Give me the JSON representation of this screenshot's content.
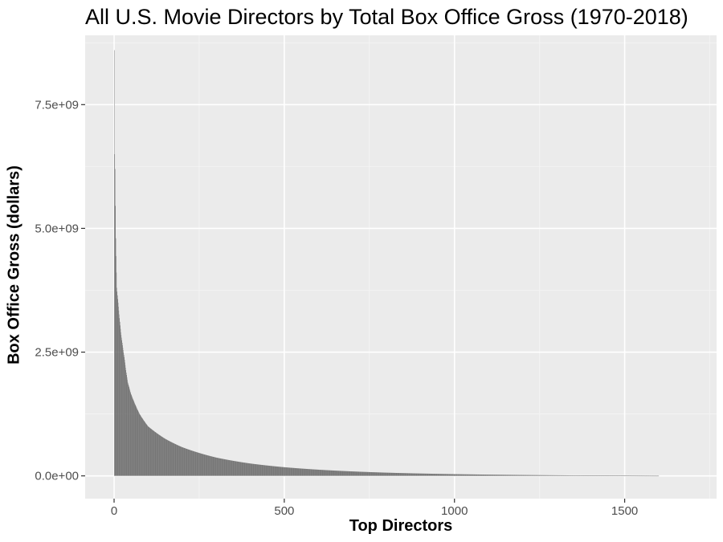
{
  "chart_data": {
    "type": "bar",
    "title": "All U.S. Movie Directors by Total Box Office Gross (1970-2018)",
    "xlabel": "Top Directors",
    "ylabel": "Box Office Gross (dollars)",
    "xlim": [
      -85,
      1770
    ],
    "ylim": [
      -460000000,
      8900000000
    ],
    "xticks": [
      0,
      500,
      1000,
      1500
    ],
    "xtick_labels": [
      "0",
      "500",
      "1000",
      "1500"
    ],
    "yticks": [
      0,
      2500000000,
      5000000000,
      7500000000
    ],
    "ytick_labels": [
      "0.0e+00",
      "2.5e+09",
      "5.0e+09",
      "7.5e+09"
    ],
    "n_bars": 1600,
    "bar_color": "#595959",
    "panel_background": "#ebebeb",
    "grid": true,
    "sample_points": [
      {
        "rank": 1,
        "gross": 8600000000
      },
      {
        "rank": 2,
        "gross": 6500000000
      },
      {
        "rank": 3,
        "gross": 6200000000
      },
      {
        "rank": 5,
        "gross": 4800000000
      },
      {
        "rank": 8,
        "gross": 3800000000
      },
      {
        "rank": 12,
        "gross": 3500000000
      },
      {
        "rank": 20,
        "gross": 2900000000
      },
      {
        "rank": 30,
        "gross": 2400000000
      },
      {
        "rank": 40,
        "gross": 1900000000
      },
      {
        "rank": 50,
        "gross": 1650000000
      },
      {
        "rank": 75,
        "gross": 1250000000
      },
      {
        "rank": 100,
        "gross": 1000000000
      },
      {
        "rank": 150,
        "gross": 750000000
      },
      {
        "rank": 200,
        "gross": 580000000
      },
      {
        "rank": 300,
        "gross": 370000000
      },
      {
        "rank": 400,
        "gross": 250000000
      },
      {
        "rank": 500,
        "gross": 175000000
      },
      {
        "rank": 600,
        "gross": 125000000
      },
      {
        "rank": 700,
        "gross": 90000000
      },
      {
        "rank": 800,
        "gross": 65000000
      },
      {
        "rank": 1000,
        "gross": 35000000
      },
      {
        "rank": 1200,
        "gross": 18000000
      },
      {
        "rank": 1400,
        "gross": 8000000
      },
      {
        "rank": 1600,
        "gross": 2000000
      }
    ]
  }
}
